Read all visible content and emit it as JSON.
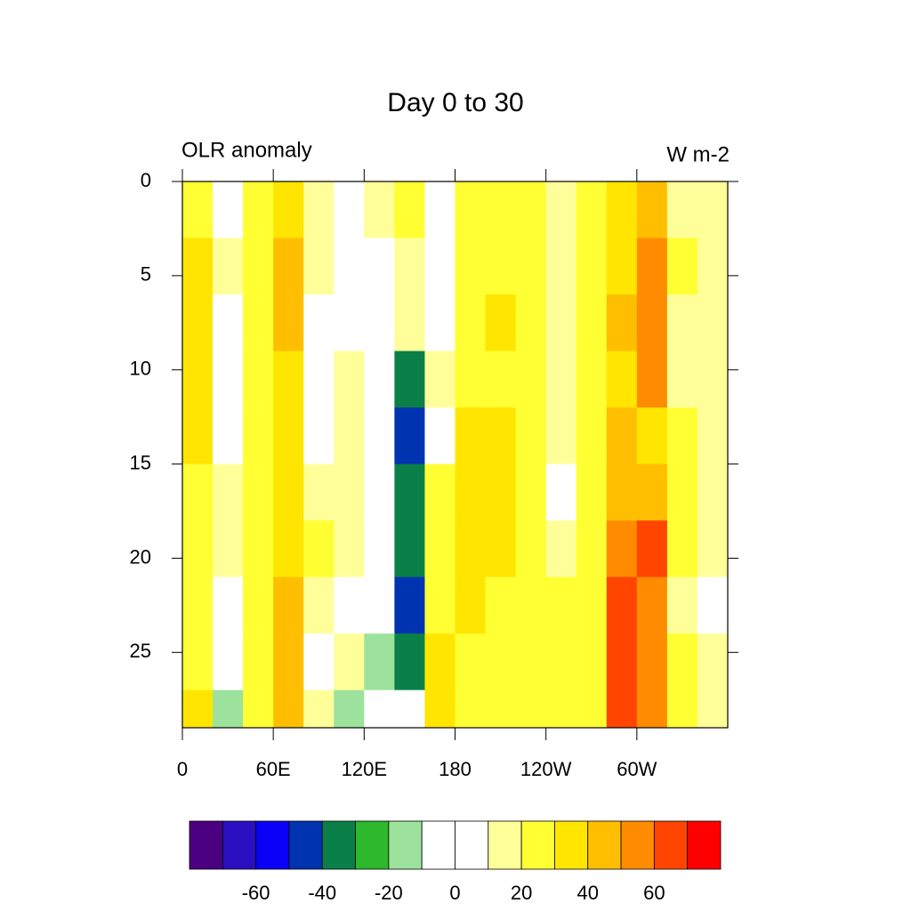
{
  "chart_data": {
    "type": "contour",
    "title": "Day 0 to 30",
    "subtitle_left": "OLR anomaly",
    "subtitle_right": "W m-2",
    "xlim": [
      0,
      360
    ],
    "ylim": [
      0,
      29
    ],
    "y_reversed": true,
    "xticks": [
      0,
      {
        "value": 60,
        "label": "60E"
      },
      {
        "value": 120,
        "label": "120E"
      },
      180,
      {
        "value": 240,
        "label": "120W"
      },
      {
        "value": 300,
        "label": "60W"
      }
    ],
    "yticks": [
      0,
      5,
      10,
      15,
      20,
      25
    ],
    "x": [
      10,
      30,
      50,
      70,
      90,
      110,
      130,
      150,
      170,
      190,
      210,
      230,
      250,
      270,
      290,
      310,
      330,
      350
    ],
    "y": [
      1.5,
      4.5,
      7.5,
      10.5,
      13.5,
      16.5,
      19.5,
      22.5,
      25.5,
      28.5
    ],
    "z": [
      [
        25,
        5,
        20,
        35,
        15,
        5,
        10,
        20,
        -5,
        20,
        25,
        25,
        15,
        20,
        30,
        45,
        15,
        15
      ],
      [
        35,
        10,
        25,
        45,
        10,
        5,
        5,
        15,
        0,
        20,
        25,
        20,
        15,
        20,
        35,
        50,
        20,
        15
      ],
      [
        30,
        5,
        25,
        40,
        5,
        5,
        -10,
        10,
        -5,
        25,
        30,
        25,
        15,
        25,
        40,
        55,
        15,
        15
      ],
      [
        35,
        0,
        25,
        35,
        -5,
        10,
        -10,
        -40,
        10,
        25,
        25,
        20,
        10,
        25,
        35,
        50,
        15,
        10
      ],
      [
        30,
        -10,
        20,
        30,
        -5,
        15,
        0,
        -50,
        -5,
        30,
        35,
        20,
        10,
        25,
        40,
        35,
        20,
        15
      ],
      [
        25,
        10,
        25,
        30,
        15,
        10,
        -5,
        -40,
        25,
        35,
        35,
        20,
        5,
        25,
        45,
        45,
        20,
        15
      ],
      [
        25,
        15,
        25,
        30,
        20,
        10,
        -10,
        -40,
        25,
        30,
        30,
        20,
        10,
        25,
        50,
        60,
        20,
        10
      ],
      [
        20,
        5,
        20,
        40,
        10,
        5,
        -10,
        -45,
        25,
        30,
        25,
        20,
        20,
        25,
        65,
        55,
        15,
        -5
      ],
      [
        25,
        0,
        25,
        45,
        0,
        15,
        -15,
        -35,
        30,
        25,
        25,
        20,
        20,
        25,
        60,
        50,
        20,
        15
      ],
      [
        35,
        -15,
        20,
        45,
        10,
        -20,
        -10,
        -10,
        30,
        20,
        25,
        20,
        20,
        25,
        65,
        50,
        25,
        15
      ]
    ],
    "levels": [
      -70,
      -60,
      -50,
      -40,
      -30,
      -20,
      -10,
      0,
      10,
      20,
      30,
      40,
      50,
      60,
      70
    ],
    "colors": [
      "#4b0082",
      "#2a10c0",
      "#0a00f5",
      "#0033b0",
      "#0a8048",
      "#2db82d",
      "#9ce29c",
      "#ffffff",
      "#ffffff",
      "#ffff99",
      "#ffff33",
      "#ffe500",
      "#ffbf00",
      "#ff8c00",
      "#ff4500",
      "#ff0000"
    ],
    "colorbar_ticks": [
      -60,
      -40,
      -20,
      0,
      20,
      40,
      60
    ]
  }
}
